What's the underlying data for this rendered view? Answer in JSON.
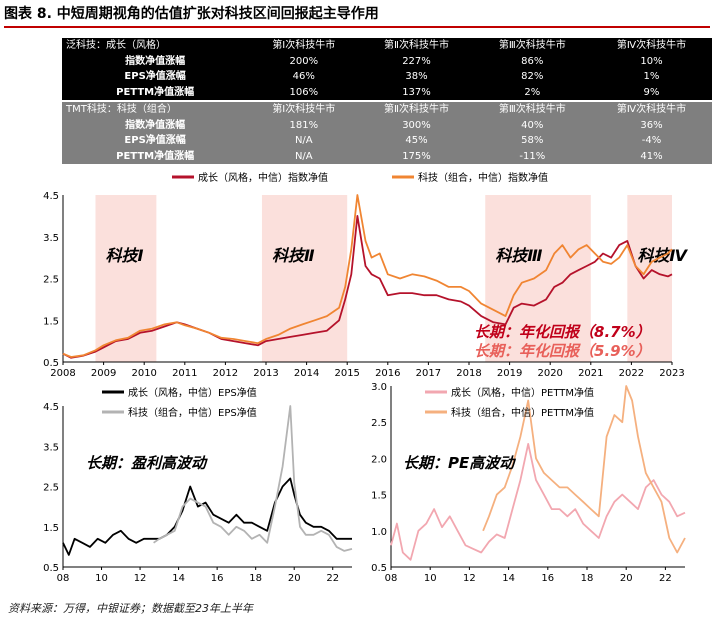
{
  "title": "图表 8. 中短周期视角的估值扩张对科技区间回报起主导作用",
  "table": {
    "group1": {
      "header": [
        "泛科技：成长（风格）",
        "第Ⅰ次科技牛市",
        "第Ⅱ次科技牛市",
        "第Ⅲ次科技牛市",
        "第Ⅳ次科技牛市"
      ],
      "rows": [
        [
          "指数净值涨幅",
          "200%",
          "227%",
          "86%",
          "10%"
        ],
        [
          "EPS净值涨幅",
          "46%",
          "38%",
          "82%",
          "1%"
        ],
        [
          "PETTM净值涨幅",
          "106%",
          "137%",
          "2%",
          "9%"
        ]
      ]
    },
    "group2": {
      "header": [
        "TMT科技：科技（组合）",
        "第Ⅰ次科技牛市",
        "第Ⅱ次科技牛市",
        "第Ⅲ次科技牛市",
        "第Ⅳ次科技牛市"
      ],
      "rows": [
        [
          "指数净值涨幅",
          "181%",
          "300%",
          "40%",
          "36%"
        ],
        [
          "EPS净值涨幅",
          "N/A",
          "45%",
          "58%",
          "-4%"
        ],
        [
          "PETTM净值涨幅",
          "N/A",
          "175%",
          "-11%",
          "41%"
        ]
      ]
    }
  },
  "chart_data": [
    {
      "type": "line",
      "series": [
        {
          "name": "成长（风格，中信）指数净值",
          "color": "#b5122b",
          "x": [
            2008.0,
            2008.2,
            2008.5,
            2008.8,
            2009.0,
            2009.3,
            2009.6,
            2009.9,
            2010.2,
            2010.5,
            2010.8,
            2011.0,
            2011.3,
            2011.6,
            2011.9,
            2012.2,
            2012.5,
            2012.8,
            2013.0,
            2013.3,
            2013.6,
            2013.9,
            2014.2,
            2014.5,
            2014.8,
            2014.95,
            2015.1,
            2015.25,
            2015.45,
            2015.6,
            2015.8,
            2016.0,
            2016.3,
            2016.6,
            2016.9,
            2017.2,
            2017.5,
            2017.8,
            2018.0,
            2018.3,
            2018.6,
            2018.9,
            2019.1,
            2019.3,
            2019.6,
            2019.9,
            2020.1,
            2020.3,
            2020.5,
            2020.7,
            2020.9,
            2021.1,
            2021.3,
            2021.5,
            2021.7,
            2021.9,
            2022.1,
            2022.3,
            2022.5,
            2022.7,
            2022.9,
            2023.0
          ],
          "y": [
            0.7,
            0.6,
            0.65,
            0.75,
            0.85,
            1.0,
            1.05,
            1.2,
            1.25,
            1.35,
            1.45,
            1.4,
            1.3,
            1.2,
            1.05,
            1.0,
            0.95,
            0.9,
            1.0,
            1.05,
            1.1,
            1.15,
            1.2,
            1.25,
            1.5,
            2.0,
            2.6,
            4.0,
            2.8,
            2.6,
            2.5,
            2.1,
            2.15,
            2.15,
            2.1,
            2.1,
            2.0,
            1.95,
            1.85,
            1.6,
            1.45,
            1.4,
            1.8,
            1.9,
            1.85,
            2.0,
            2.3,
            2.4,
            2.6,
            2.7,
            2.8,
            2.9,
            3.1,
            3.0,
            3.3,
            3.4,
            2.8,
            2.5,
            2.7,
            2.6,
            2.55,
            2.6
          ]
        },
        {
          "name": "科技（组合，中信）指数净值",
          "color": "#f08532",
          "x": [
            2008.0,
            2008.2,
            2008.5,
            2008.8,
            2009.0,
            2009.3,
            2009.6,
            2009.9,
            2010.2,
            2010.5,
            2010.8,
            2011.0,
            2011.3,
            2011.6,
            2011.9,
            2012.2,
            2012.5,
            2012.8,
            2013.0,
            2013.3,
            2013.6,
            2013.9,
            2014.2,
            2014.5,
            2014.8,
            2014.95,
            2015.1,
            2015.25,
            2015.45,
            2015.6,
            2015.8,
            2016.0,
            2016.3,
            2016.6,
            2016.9,
            2017.2,
            2017.5,
            2017.8,
            2018.0,
            2018.3,
            2018.6,
            2018.9,
            2019.1,
            2019.3,
            2019.6,
            2019.9,
            2020.1,
            2020.3,
            2020.5,
            2020.7,
            2020.9,
            2021.1,
            2021.3,
            2021.5,
            2021.7,
            2021.9,
            2022.1,
            2022.3,
            2022.5,
            2022.7,
            2022.9,
            2023.0
          ],
          "y": [
            0.7,
            0.62,
            0.66,
            0.78,
            0.9,
            1.02,
            1.08,
            1.25,
            1.3,
            1.4,
            1.45,
            1.38,
            1.3,
            1.2,
            1.08,
            1.05,
            1.0,
            0.95,
            1.05,
            1.15,
            1.3,
            1.4,
            1.5,
            1.6,
            1.8,
            2.3,
            3.2,
            5.0,
            3.4,
            3.0,
            3.1,
            2.6,
            2.5,
            2.6,
            2.55,
            2.45,
            2.3,
            2.3,
            2.2,
            1.9,
            1.75,
            1.6,
            2.1,
            2.4,
            2.5,
            2.7,
            3.1,
            3.3,
            3.0,
            3.2,
            3.3,
            3.1,
            2.9,
            2.85,
            3.0,
            3.3,
            2.8,
            2.6,
            2.9,
            3.0,
            3.1,
            3.2
          ]
        }
      ],
      "xlim": [
        2008,
        2023
      ],
      "ylim": [
        0.5,
        4.5
      ],
      "xticks": [
        "2008",
        "2009",
        "2010",
        "2011",
        "2012",
        "2013",
        "2014",
        "2015",
        "2016",
        "2017",
        "2018",
        "2019",
        "2020",
        "2021",
        "2022",
        "2023"
      ],
      "yticks": [
        "0.5",
        "1.5",
        "2.5",
        "3.5",
        "4.5"
      ],
      "shaded": [
        {
          "from": 2008.8,
          "to": 2010.3,
          "label": "科技Ⅰ"
        },
        {
          "from": 2012.9,
          "to": 2015.0,
          "label": "科技Ⅱ"
        },
        {
          "from": 2018.4,
          "to": 2021.0,
          "label": "科技Ⅲ"
        },
        {
          "from": 2021.9,
          "to": 2023.0,
          "label": "科技Ⅳ"
        }
      ],
      "annotations": [
        "长期：年化回报（8.7%）",
        "长期：年化回报（5.9%）"
      ],
      "legend": "top"
    },
    {
      "type": "line",
      "series": [
        {
          "name": "成长（风格，中信）EPS净值",
          "color": "#000000",
          "x": [
            8.0,
            8.3,
            8.6,
            9.0,
            9.4,
            9.8,
            10.2,
            10.6,
            11.0,
            11.4,
            11.8,
            12.2,
            12.6,
            13.0,
            13.4,
            13.8,
            14.2,
            14.6,
            15.0,
            15.4,
            15.8,
            16.2,
            16.6,
            17.0,
            17.4,
            17.8,
            18.2,
            18.6,
            19.0,
            19.4,
            19.8,
            20.0,
            20.3,
            20.6,
            21.0,
            21.4,
            21.8,
            22.2,
            22.6,
            23.0
          ],
          "y": [
            1.1,
            0.8,
            1.2,
            1.1,
            1.0,
            1.2,
            1.1,
            1.3,
            1.4,
            1.2,
            1.1,
            1.2,
            1.2,
            1.2,
            1.3,
            1.5,
            1.9,
            2.5,
            2.0,
            2.1,
            1.8,
            1.7,
            1.6,
            1.8,
            1.6,
            1.6,
            1.5,
            1.4,
            2.1,
            2.5,
            2.7,
            2.3,
            1.8,
            1.6,
            1.5,
            1.5,
            1.4,
            1.2,
            1.2,
            1.2
          ]
        },
        {
          "name": "科技（组合，中信）EPS净值",
          "color": "#b3b3b3",
          "x": [
            12.7,
            13.0,
            13.4,
            13.8,
            14.2,
            14.6,
            15.0,
            15.4,
            15.8,
            16.2,
            16.6,
            17.0,
            17.4,
            17.8,
            18.2,
            18.6,
            19.0,
            19.4,
            19.8,
            20.0,
            20.3,
            20.6,
            21.0,
            21.4,
            21.8,
            22.2,
            22.6,
            23.0
          ],
          "y": [
            1.1,
            1.2,
            1.3,
            1.4,
            2.0,
            2.2,
            2.1,
            2.0,
            1.6,
            1.5,
            1.3,
            1.5,
            1.4,
            1.2,
            1.3,
            1.1,
            2.0,
            3.0,
            4.7,
            2.6,
            1.5,
            1.3,
            1.3,
            1.4,
            1.3,
            1.0,
            0.9,
            0.95
          ]
        }
      ],
      "xlim": [
        8,
        23
      ],
      "ylim": [
        0.5,
        4.5
      ],
      "xticks": [
        "08",
        "10",
        "12",
        "14",
        "16",
        "18",
        "20",
        "22"
      ],
      "yticks": [
        "0.5",
        "1.5",
        "2.5",
        "3.5",
        "4.5"
      ],
      "annotation": "长期：盈利高波动",
      "legend": "top"
    },
    {
      "type": "line",
      "series": [
        {
          "name": "成长（风格，中信）PETTM净值",
          "color": "#f2a7b0",
          "x": [
            8.0,
            8.3,
            8.6,
            9.0,
            9.4,
            9.8,
            10.2,
            10.6,
            11.0,
            11.4,
            11.8,
            12.2,
            12.6,
            13.0,
            13.4,
            13.8,
            14.2,
            14.6,
            15.0,
            15.4,
            15.8,
            16.2,
            16.6,
            17.0,
            17.4,
            17.8,
            18.2,
            18.6,
            19.0,
            19.4,
            19.8,
            20.2,
            20.6,
            21.0,
            21.4,
            21.8,
            22.2,
            22.6,
            23.0
          ],
          "y": [
            0.8,
            1.1,
            0.7,
            0.6,
            1.0,
            1.1,
            1.3,
            1.05,
            1.2,
            1.0,
            0.8,
            0.75,
            0.7,
            0.85,
            0.95,
            0.9,
            1.3,
            1.7,
            2.2,
            1.7,
            1.5,
            1.3,
            1.3,
            1.2,
            1.3,
            1.1,
            1.0,
            0.9,
            1.2,
            1.4,
            1.5,
            1.4,
            1.3,
            1.6,
            1.7,
            1.5,
            1.4,
            1.2,
            1.25
          ]
        },
        {
          "name": "科技（组合，中信）PETTM净值",
          "color": "#f5b07f",
          "x": [
            12.7,
            13.0,
            13.4,
            13.8,
            14.2,
            14.6,
            15.0,
            15.4,
            15.8,
            16.2,
            16.6,
            17.0,
            17.4,
            17.8,
            18.2,
            18.6,
            19.0,
            19.4,
            19.8,
            20.0,
            20.3,
            20.6,
            21.0,
            21.4,
            21.8,
            22.2,
            22.6,
            23.0
          ],
          "y": [
            1.0,
            1.2,
            1.5,
            1.6,
            1.9,
            2.3,
            2.8,
            2.0,
            1.8,
            1.7,
            1.6,
            1.6,
            1.5,
            1.4,
            1.3,
            1.2,
            2.3,
            2.6,
            2.5,
            3.0,
            2.8,
            2.3,
            1.8,
            1.6,
            1.4,
            0.9,
            0.7,
            0.9
          ]
        }
      ],
      "xlim": [
        8,
        23
      ],
      "ylim": [
        0.5,
        3.0
      ],
      "xticks": [
        "08",
        "10",
        "12",
        "14",
        "16",
        "18",
        "20",
        "22"
      ],
      "yticks": [
        "0.5",
        "1.0",
        "1.5",
        "2.0",
        "2.5",
        "3.0"
      ],
      "annotation": "长期：PE高波动",
      "legend": "top"
    }
  ],
  "source": "资料来源：万得，中银证券；数据截至23年上半年"
}
